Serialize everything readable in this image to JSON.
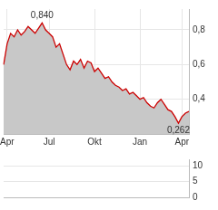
{
  "chart_data": [
    {
      "type": "line",
      "categories": [
        null,
        "Apr",
        null,
        null,
        null,
        null,
        null,
        null,
        null,
        null,
        null,
        null,
        null,
        "Jul",
        null,
        null,
        null,
        null,
        null,
        null,
        null,
        null,
        null,
        null,
        null,
        null,
        "Okt",
        null,
        null,
        null,
        null,
        null,
        null,
        null,
        null,
        null,
        null,
        null,
        null,
        "Jan",
        null,
        null,
        null,
        null,
        null,
        null,
        null,
        null,
        null,
        null,
        null,
        "Apr",
        null,
        null
      ],
      "values": [
        0.6,
        0.72,
        0.78,
        0.76,
        0.8,
        0.77,
        0.79,
        0.82,
        0.8,
        0.78,
        0.81,
        0.84,
        0.8,
        0.78,
        0.76,
        0.7,
        0.72,
        0.66,
        0.6,
        0.57,
        0.62,
        0.6,
        0.63,
        0.58,
        0.62,
        0.61,
        0.56,
        0.58,
        0.55,
        0.52,
        0.53,
        0.5,
        0.48,
        0.47,
        0.45,
        0.46,
        0.43,
        0.44,
        0.42,
        0.4,
        0.41,
        0.38,
        0.36,
        0.35,
        0.38,
        0.4,
        0.37,
        0.34,
        0.33,
        0.3,
        0.262,
        0.3,
        0.32,
        0.33
      ],
      "color": "#cc0000",
      "ylim": [
        0.2,
        0.92
      ],
      "yticks": [
        {
          "value": 0.4,
          "label": "0,4"
        },
        {
          "value": 0.6,
          "label": "0,6"
        },
        {
          "value": 0.8,
          "label": "0,8"
        }
      ],
      "grid": true,
      "annotations": [
        {
          "label": "0,840",
          "value": 0.84
        },
        {
          "label": "0,262",
          "value": 0.262
        }
      ]
    },
    {
      "type": "bar",
      "categories": [
        null,
        null,
        null,
        null,
        null,
        null,
        null,
        null,
        null,
        null,
        null,
        null,
        null,
        null,
        null,
        null,
        null,
        null,
        null,
        null,
        null,
        null,
        null,
        null,
        null,
        null,
        null,
        null,
        null,
        null,
        null,
        null,
        null,
        null,
        null,
        null,
        null,
        null,
        null,
        null,
        null,
        null,
        null,
        null,
        null,
        null,
        null,
        null,
        null,
        null,
        null,
        null,
        null,
        null
      ],
      "values": [
        0,
        0,
        0,
        0,
        0,
        0,
        0,
        0,
        0,
        0,
        0,
        0,
        0,
        0,
        0,
        0,
        0,
        0,
        0,
        0,
        0,
        0,
        0,
        0,
        0,
        0,
        0,
        0,
        0,
        0,
        0,
        0,
        0,
        0,
        0,
        0,
        0,
        0,
        0,
        0,
        0,
        0,
        0,
        0,
        0,
        0,
        0,
        0,
        0,
        0,
        0,
        0,
        0,
        0
      ],
      "color": "#999999",
      "ylim": [
        0,
        12
      ],
      "yticks": [
        0,
        5,
        10
      ],
      "grid": true,
      "tick_labels": "y"
    }
  ]
}
